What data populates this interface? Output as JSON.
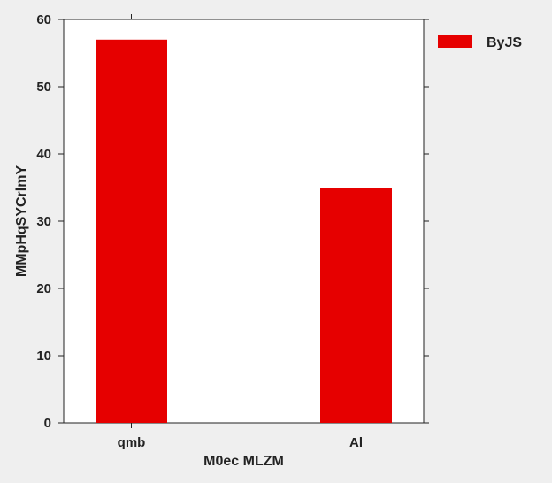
{
  "chart_data": {
    "type": "bar",
    "categories": [
      "qmb",
      "Al"
    ],
    "series": [
      {
        "name": "ByJS",
        "values": [
          57,
          35
        ],
        "color": "#e60000"
      }
    ],
    "xlabel": "M0ec MLZM",
    "ylabel": "MMpHqSYCrlmY",
    "ylim": [
      0,
      60
    ],
    "yticks": [
      0,
      10,
      20,
      30,
      40,
      50,
      60
    ],
    "grid": false,
    "legend": "outside-top-right"
  }
}
